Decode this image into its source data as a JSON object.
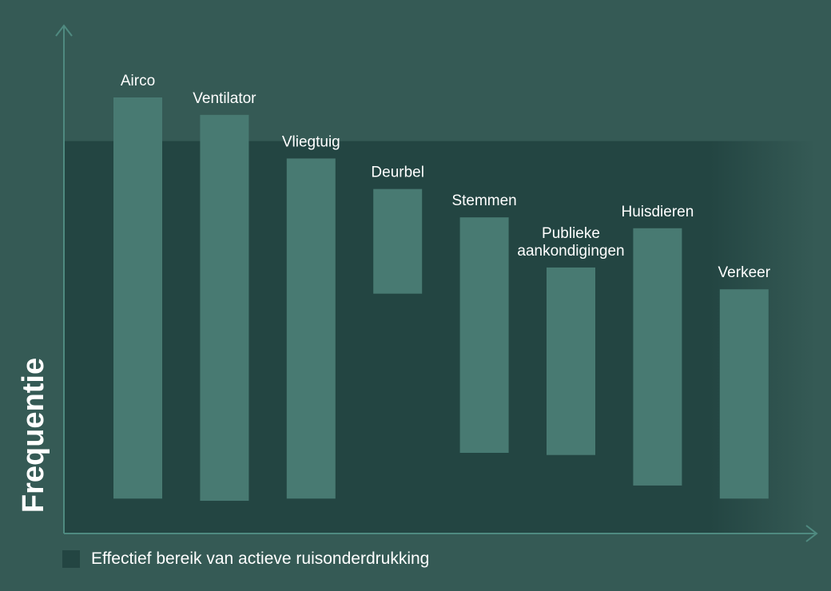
{
  "chart_data": {
    "type": "bar",
    "categories": [
      "Airco",
      "Ventilator",
      "Vliegtuig",
      "Deurbel",
      "Stemmen",
      "Publieke aankondigingen",
      "Huisdieren",
      "Verkeer"
    ],
    "ranges": [
      [
        0.08,
        1.0
      ],
      [
        0.075,
        0.96
      ],
      [
        0.08,
        0.86
      ],
      [
        0.55,
        0.79
      ],
      [
        0.185,
        0.725
      ],
      [
        0.18,
        0.61
      ],
      [
        0.11,
        0.7
      ],
      [
        0.08,
        0.56
      ]
    ],
    "ylabel": "Frequentie",
    "xlabel": "",
    "ylim": [
      0,
      1.0
    ],
    "effective_range": [
      0,
      0.9
    ],
    "legend": {
      "label": "Effectief bereik van actieve ruisonderdrukking",
      "position": "bottom-left"
    },
    "colors": {
      "background": "#355a55",
      "bar": "#487a72",
      "effective_range": "#234542",
      "axis": "#4f8a80",
      "text": "#ffffff"
    },
    "grid": false
  }
}
